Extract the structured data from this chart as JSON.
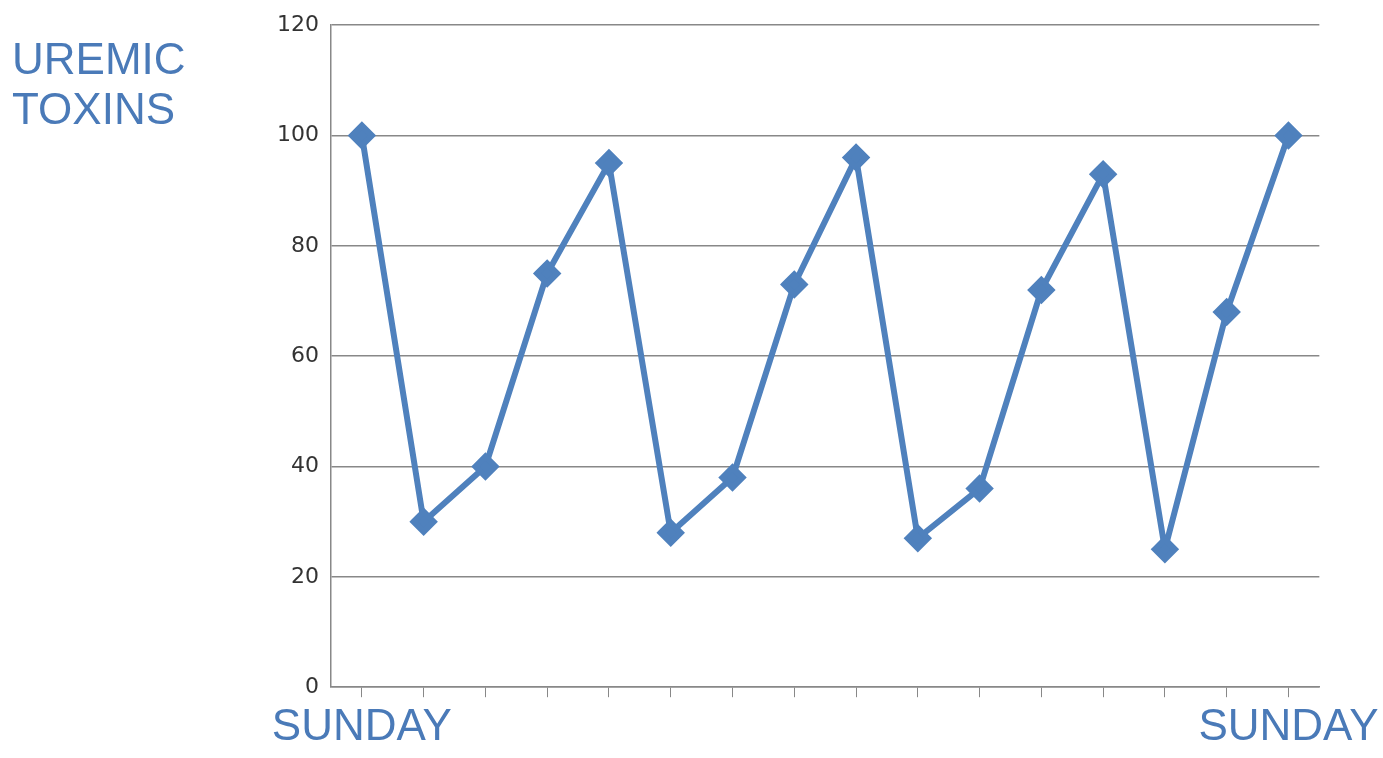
{
  "chart_data": {
    "type": "line",
    "ylabel": "UREMIC TOXINS",
    "categories": [
      "SUNDAY",
      null,
      null,
      null,
      null,
      null,
      null,
      null,
      null,
      null,
      null,
      null,
      null,
      null,
      null,
      "SUNDAY"
    ],
    "series": [
      {
        "color": "#4f81bd",
        "values": [
          100,
          30,
          40,
          75,
          95,
          28,
          38,
          73,
          96,
          27,
          36,
          72,
          93,
          25,
          68,
          100
        ]
      }
    ],
    "ylim": [
      0,
      120
    ],
    "yticks": [
      0,
      20,
      40,
      60,
      80,
      100,
      120
    ],
    "grid": "y",
    "legend": false,
    "marker": "diamond",
    "line_style": "solid"
  }
}
